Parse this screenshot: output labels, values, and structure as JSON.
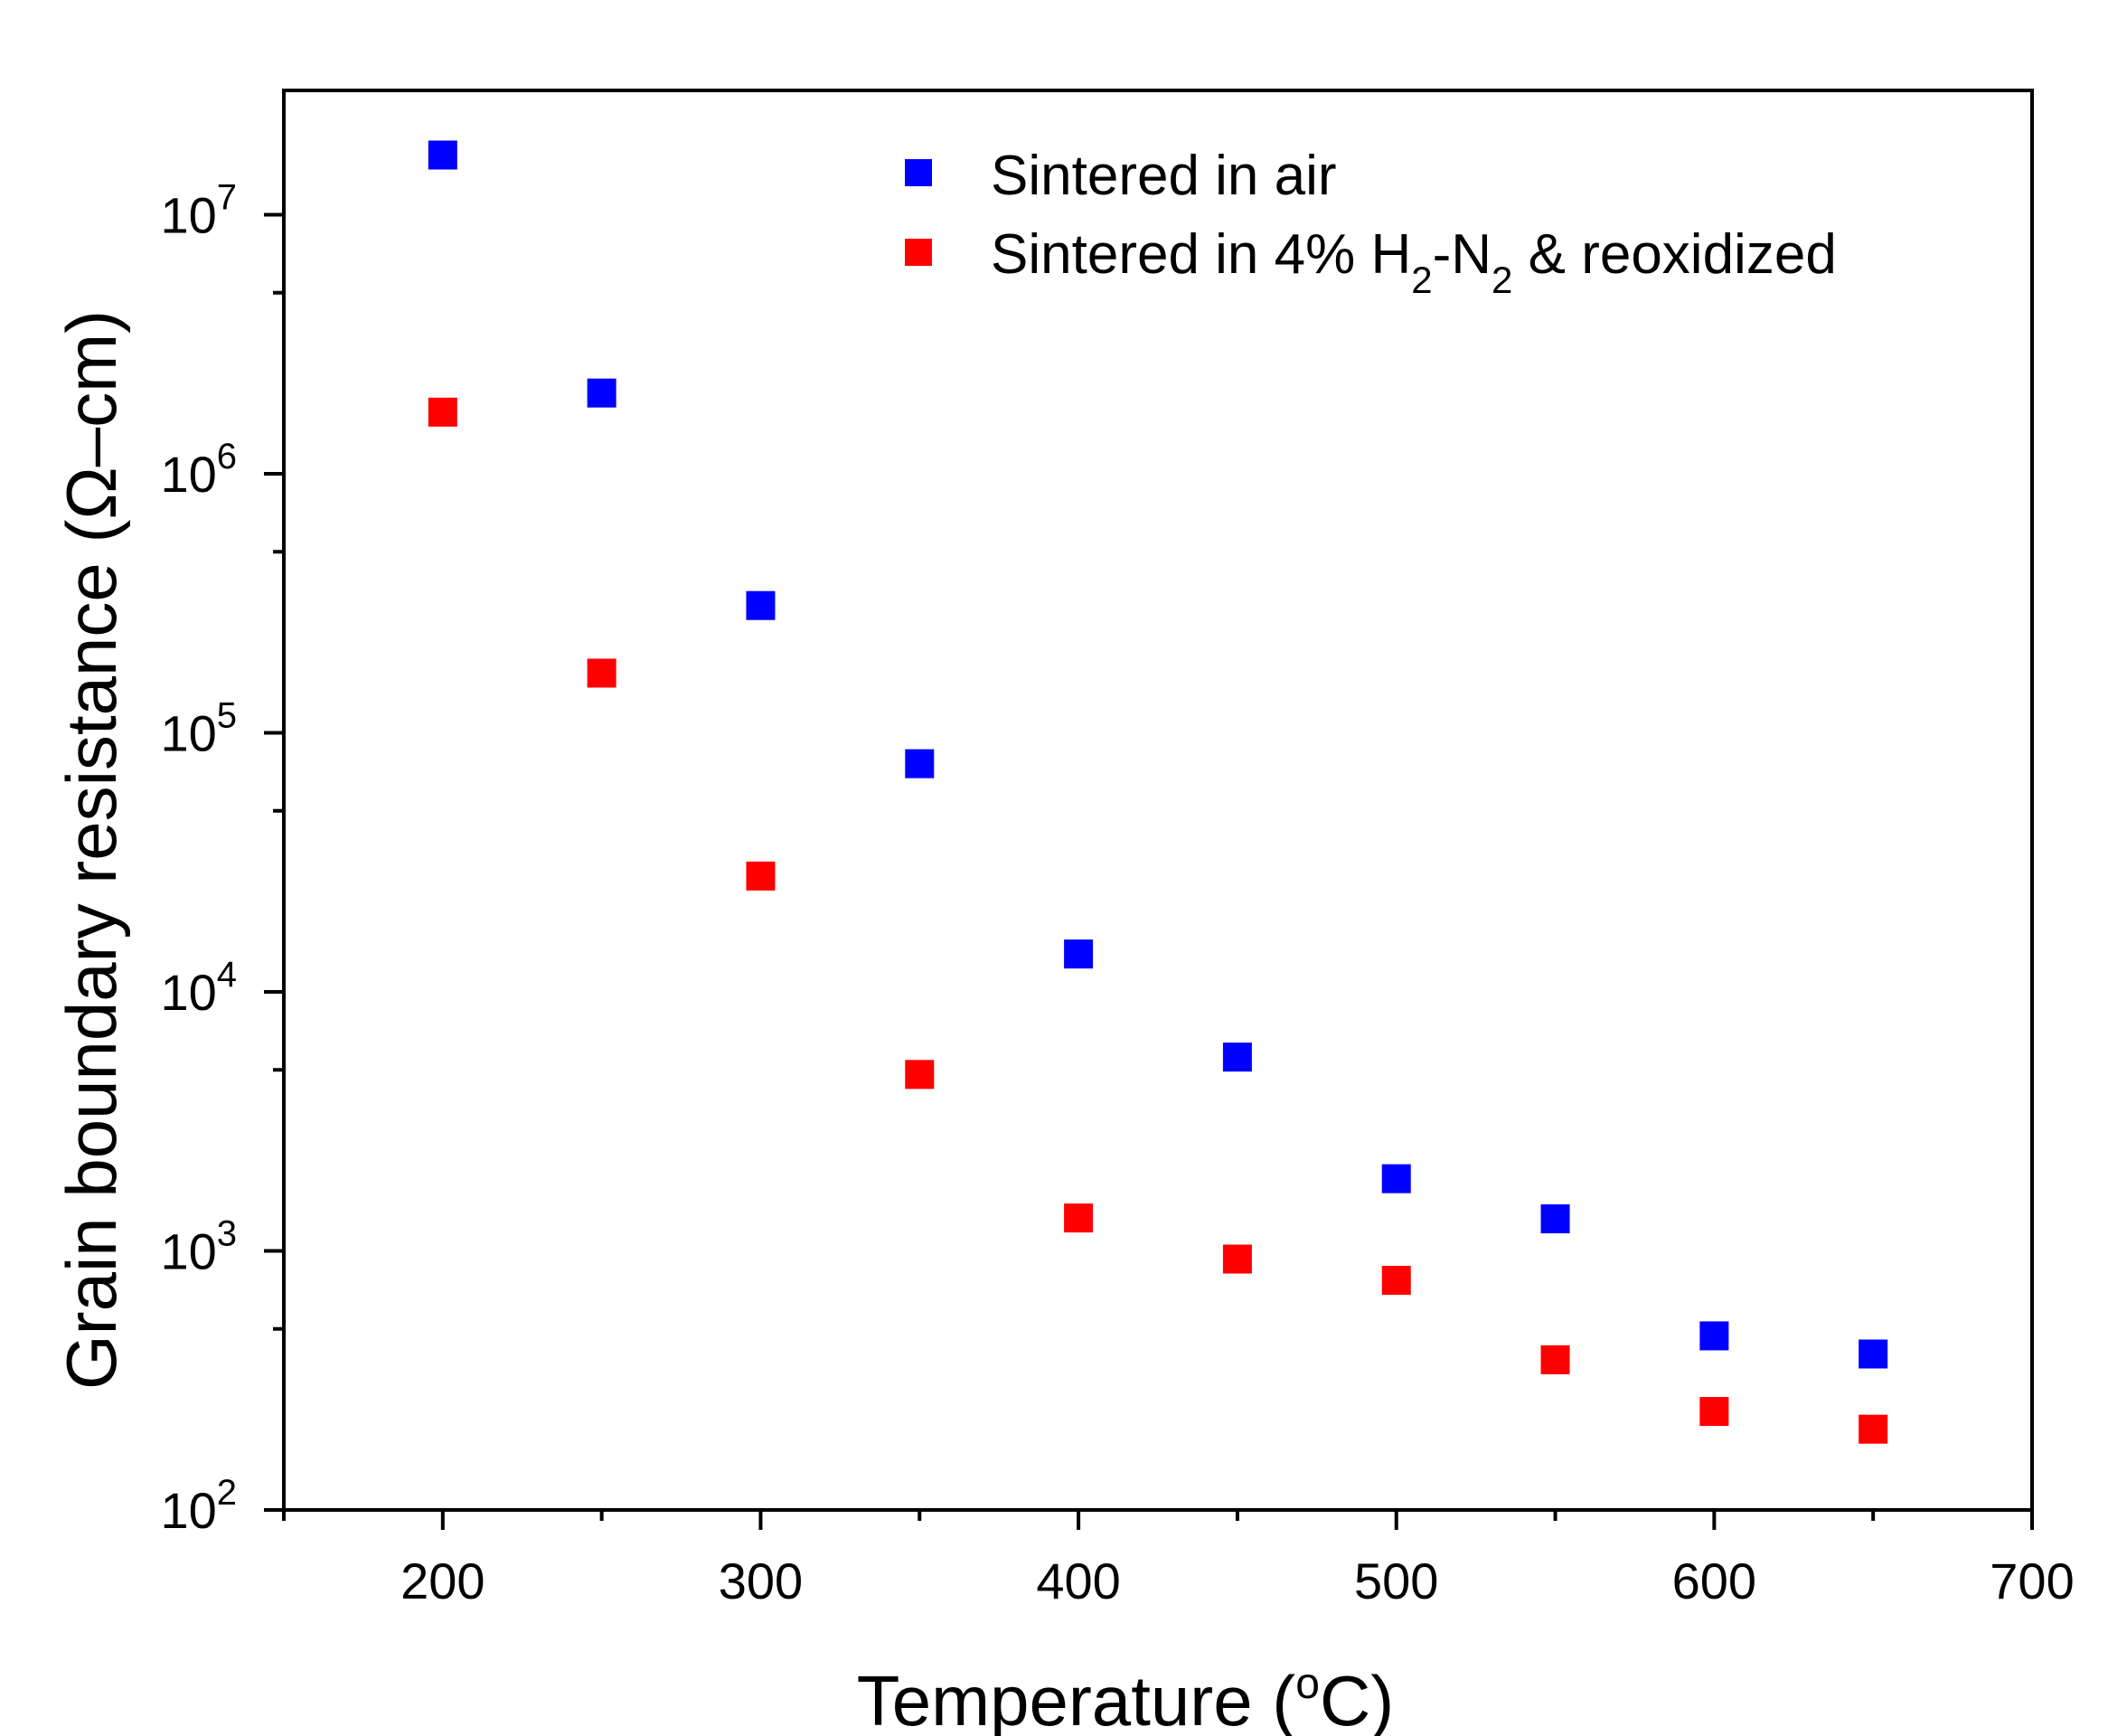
{
  "chart_data": {
    "type": "scatter",
    "title": "",
    "xlabel": {
      "main": "Temperature (",
      "sup": "o",
      "tail": "C)"
    },
    "ylabel": "Grain boundary resistance (Ω–cm)",
    "xlim": [
      150,
      700
    ],
    "ylim": [
      100,
      30000000
    ],
    "yscale": "log",
    "xticks": [
      "200",
      "300",
      "400",
      "500",
      "600",
      "700"
    ],
    "xtick_values": [
      200,
      300,
      400,
      500,
      600,
      700
    ],
    "yticks": [
      {
        "value": 100,
        "base": "10",
        "exp": "2"
      },
      {
        "value": 1000,
        "base": "10",
        "exp": "3"
      },
      {
        "value": 10000,
        "base": "10",
        "exp": "4"
      },
      {
        "value": 100000,
        "base": "10",
        "exp": "5"
      },
      {
        "value": 1000000,
        "base": "10",
        "exp": "6"
      },
      {
        "value": 10000000,
        "base": "10",
        "exp": "7"
      }
    ],
    "legend_position": "top-right",
    "x": [
      200,
      250,
      300,
      350,
      400,
      450,
      500,
      550,
      600,
      650
    ],
    "series": [
      {
        "name": "Sintered in air",
        "color": "#0000ff",
        "marker": "square",
        "values": [
          17000000,
          2050000,
          310000,
          76000,
          14000,
          5600,
          1900,
          1330,
          470,
          400
        ]
      },
      {
        "name": "Sintered in 4% H2-N2 & reoxidized",
        "color": "#ff0000",
        "marker": "square",
        "values": [
          1730000,
          170000,
          28000,
          4800,
          1340,
          930,
          770,
          380,
          240,
          205
        ]
      }
    ],
    "legend_labels": {
      "air": "Sintered in air",
      "h2_prefix": "Sintered in 4% H",
      "h2_sub1": "2",
      "h2_mid": "-N",
      "h2_sub2": "2",
      "h2_suffix": " & reoxidized"
    }
  }
}
